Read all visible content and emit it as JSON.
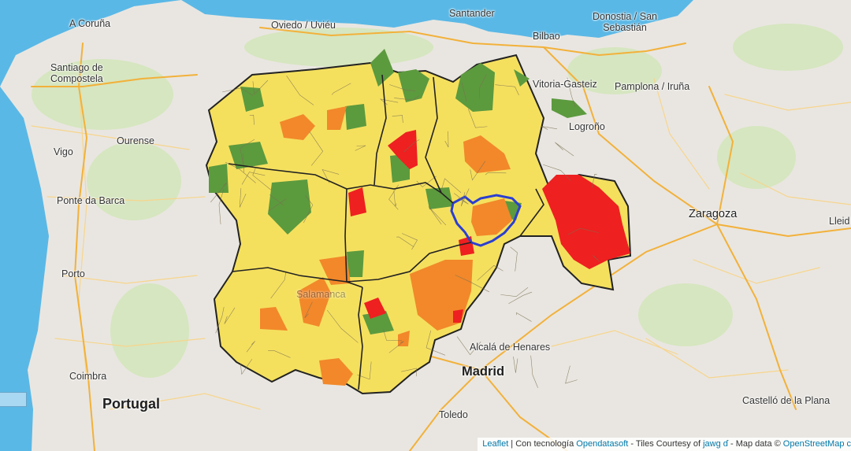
{
  "colors": {
    "sea": "#5ab8e6",
    "land": "#e9e6e1",
    "vegetation": "#d6e6c0",
    "road_major": "#f2b13a",
    "road_minor": "#f7d58c",
    "region_border": "#222222",
    "zone_border": "#6f6a55",
    "level_yellow": "#f5e05e",
    "level_orange": "#f2882a",
    "level_red": "#ee2020",
    "level_green": "#5c9a3e",
    "highlight_outline": "#2b3fd1"
  },
  "places": {
    "a_coruna": "A Coruña",
    "santander": "Santander",
    "donostia": "Donostia / San\nSebastián",
    "oviedo": "Oviedo / Uviéu",
    "bilbao": "Bilbao",
    "santiago": "Santiago de\nCompostela",
    "vitoria": "Vitoria-Gasteiz",
    "pamplona": "Pamplona / Iruña",
    "logrono": "Logroño",
    "vigo": "Vigo",
    "ourense": "Ourense",
    "ponte_da_barca": "Ponte da Barca",
    "zaragoza": "Zaragoza",
    "lleida": "Lleid",
    "porto": "Porto",
    "alcala": "Alcalá de Henares",
    "madrid": "Madrid",
    "coimbra": "Coimbra",
    "portugal": "Portugal",
    "toledo": "Toledo",
    "castellon": "Castelló de la Plana",
    "salamanca": "Salamanca"
  },
  "attribution": {
    "leaflet": "Leaflet",
    "sep1": " | Con tecnología ",
    "opendatasoft": "Opendatasoft",
    "tiles": " - Tiles Courtesy of ",
    "jawg": "jawg",
    "mapdata": " - Map data © ",
    "osm": "OpenStreetMap c"
  }
}
